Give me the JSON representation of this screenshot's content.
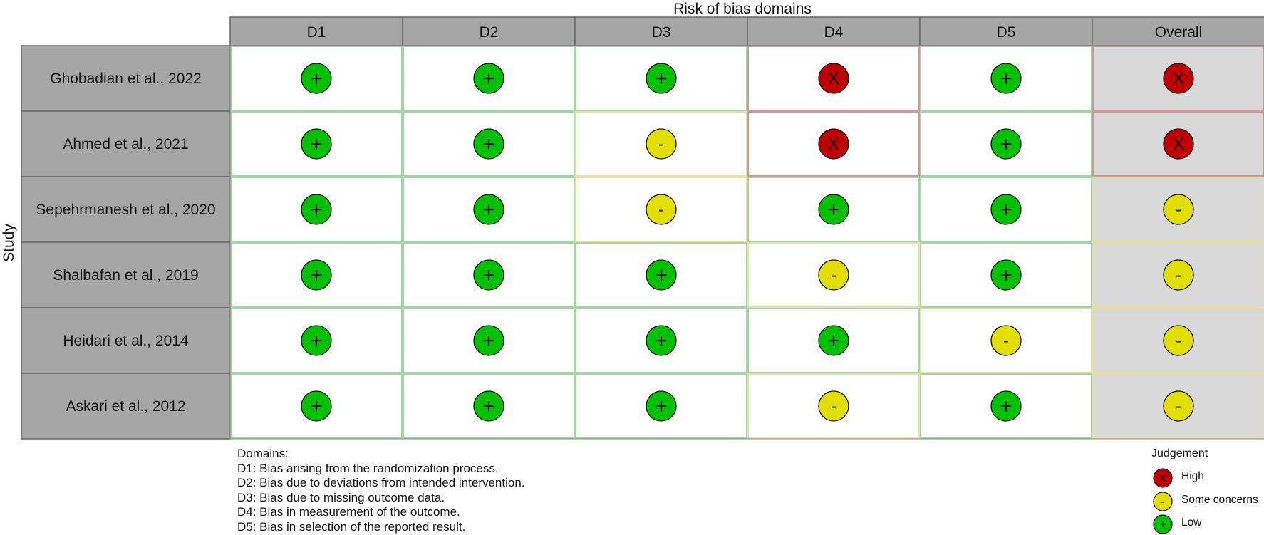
{
  "chart_data": {
    "type": "table",
    "title": "Risk of bias domains",
    "ylabel": "Study",
    "columns": [
      "D1",
      "D2",
      "D3",
      "D4",
      "D5",
      "Overall"
    ],
    "rows": [
      {
        "study": "Ghobadian et al., 2022",
        "judgements": [
          "Low",
          "Low",
          "Low",
          "High",
          "Low",
          "High"
        ]
      },
      {
        "study": "Ahmed et al., 2021",
        "judgements": [
          "Low",
          "Low",
          "Some concerns",
          "High",
          "Low",
          "High"
        ]
      },
      {
        "study": "Sepehrmanesh et al., 2020",
        "judgements": [
          "Low",
          "Low",
          "Some concerns",
          "Low",
          "Low",
          "Some concerns"
        ]
      },
      {
        "study": "Shalbafan et al., 2019",
        "judgements": [
          "Low",
          "Low",
          "Low",
          "Some concerns",
          "Low",
          "Some concerns"
        ]
      },
      {
        "study": "Heidari et al., 2014",
        "judgements": [
          "Low",
          "Low",
          "Low",
          "Low",
          "Some concerns",
          "Some concerns"
        ]
      },
      {
        "study": "Askari et al., 2012",
        "judgements": [
          "Low",
          "Low",
          "Low",
          "Some concerns",
          "Low",
          "Some concerns"
        ]
      }
    ],
    "judgement_key": {
      "High": {
        "symbol": "X",
        "color": "#c00000"
      },
      "Some concerns": {
        "symbol": "-",
        "color": "#e2df07"
      },
      "Low": {
        "symbol": "+",
        "color": "#02c100"
      }
    },
    "domains_title": "Domains:",
    "domains": [
      "D1: Bias arising from the randomization process.",
      "D2: Bias due to deviations from intended intervention.",
      "D3: Bias due to missing outcome data.",
      "D4: Bias in measurement of the outcome.",
      "D5: Bias in selection of the reported result."
    ],
    "legend_title": "Judgement",
    "legend": [
      "High",
      "Some concerns",
      "Low"
    ]
  },
  "colors": {
    "header_fill": "#a6a6a6",
    "study_fill": "#a6a6a6",
    "overall_fill": "#d9d9d9",
    "cell_fill": "#ffffff"
  }
}
